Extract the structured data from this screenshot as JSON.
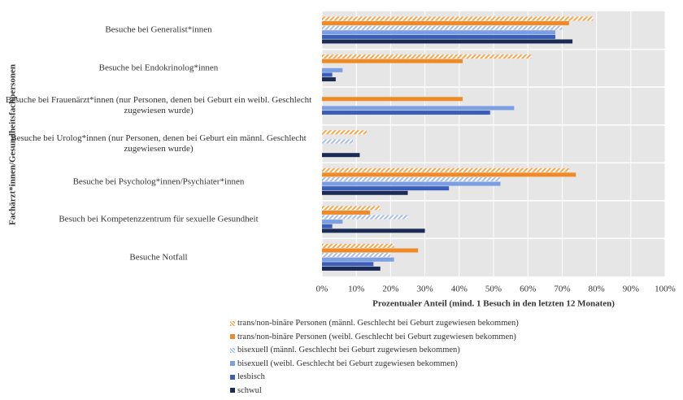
{
  "chart_data": {
    "type": "hbar",
    "y_label": "Fachärzt*innen/Gesundheitsfachpersonen",
    "x_label": "Prozentualer Anteil (mind. 1 Besuch in den letzten 12 Monaten)",
    "categories": [
      "Besuche bei Generalist*innen",
      "Besuche bei Endokrinolog*innen",
      "Besuche bei Frauenärzt*innen (nur Personen, denen bei Geburt ein weibl. Geschlecht zugewiesen wurde)",
      "Besuche bei Urolog*innen (nur Personen, denen bei Geburt ein männl. Geschlecht zugewiesen wurde)",
      "Besuche bei Psycholog*innen/Psychiater*innen",
      "Besuch bei Kompetenzzentrum für sexuelle Gesundheit",
      "Besuche Notfall"
    ],
    "series": [
      {
        "name": "trans/non-binäre Personen (männl. Geschlecht bei Geburt zugewiesen bekommen)",
        "color": "#f5a54a",
        "hatched": true,
        "values": [
          79,
          61,
          null,
          13,
          72,
          17,
          21
        ]
      },
      {
        "name": "trans/non-binäre Personen (weibl. Geschlecht bei Geburt zugewiesen bekommen)",
        "color": "#ef8a26",
        "hatched": false,
        "values": [
          72,
          41,
          41,
          null,
          74,
          14,
          28
        ]
      },
      {
        "name": "bisexuell (männl. Geschlecht bei Geburt zugewiesen bekommen)",
        "color": "#a6bce4",
        "hatched": true,
        "values": [
          70,
          null,
          null,
          9,
          52,
          25,
          20
        ]
      },
      {
        "name": "bisexuell (weibl. Geschlecht bei Geburt zugewiesen bekommen)",
        "color": "#7c9ee2",
        "hatched": false,
        "values": [
          68,
          6,
          56,
          null,
          52,
          6,
          21
        ]
      },
      {
        "name": "lesbisch",
        "color": "#3b5fb8",
        "hatched": false,
        "values": [
          68,
          3,
          49,
          null,
          37,
          3,
          15
        ]
      },
      {
        "name": "schwul",
        "color": "#1c2b55",
        "hatched": false,
        "values": [
          73,
          4,
          null,
          11,
          25,
          30,
          17
        ]
      }
    ],
    "xlim": [
      0,
      100
    ],
    "xticks": [
      {
        "value": 0,
        "label": "0%"
      },
      {
        "value": 10,
        "label": "10%"
      },
      {
        "value": 20,
        "label": "20%"
      },
      {
        "value": 30,
        "label": "30%"
      },
      {
        "value": 40,
        "label": "40%"
      },
      {
        "value": 50,
        "label": "50%"
      },
      {
        "value": 60,
        "label": "60%"
      },
      {
        "value": 70,
        "label": "70%"
      },
      {
        "value": 80,
        "label": "80%"
      },
      {
        "value": 90,
        "label": "90%"
      },
      {
        "value": 100,
        "label": "100%"
      }
    ],
    "grid": true
  }
}
